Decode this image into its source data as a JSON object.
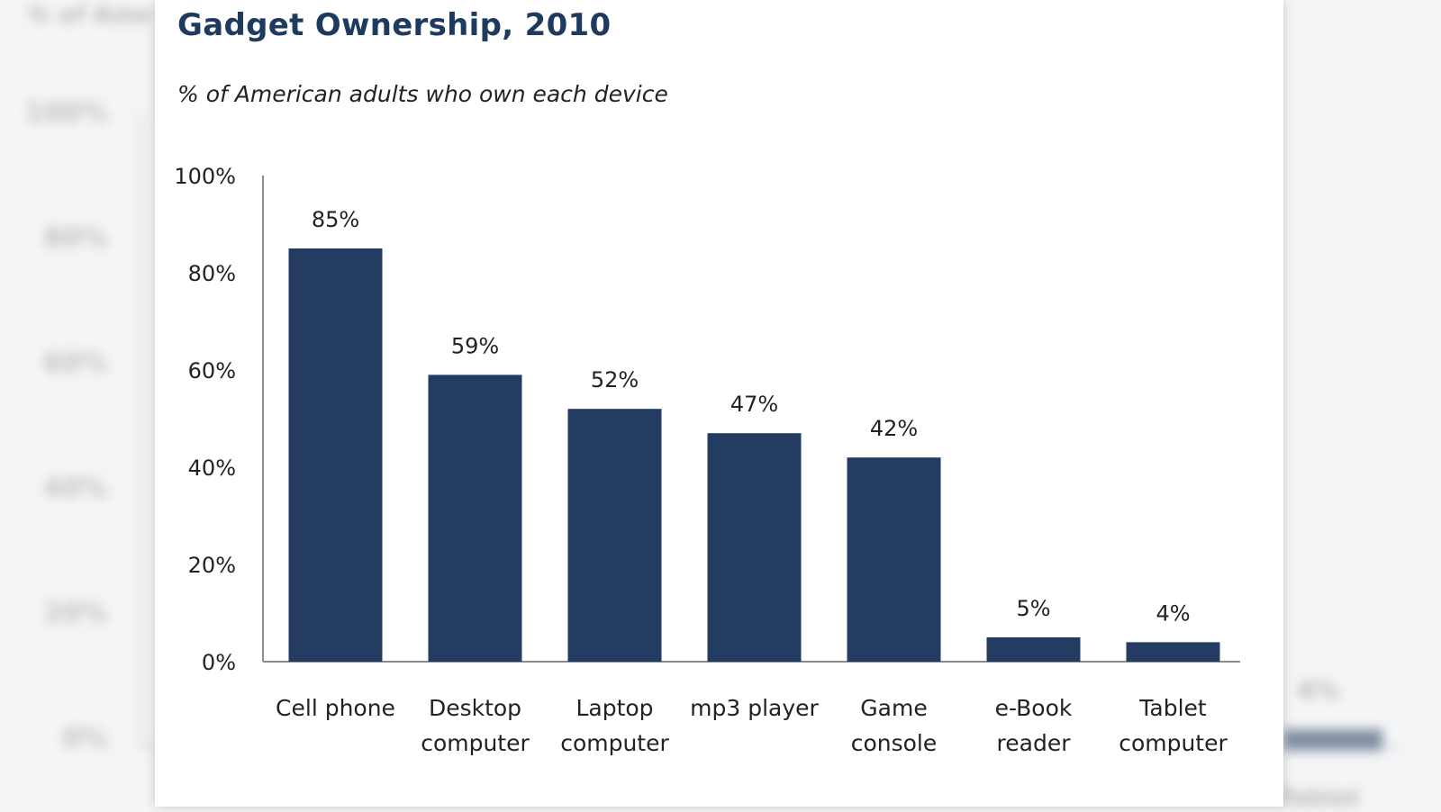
{
  "chart_data": {
    "type": "bar",
    "title": "Gadget Ownership, 2010",
    "subtitle": "% of American adults who own each device",
    "categories": [
      "Cell phone",
      "Desktop computer",
      "Laptop computer",
      "mp3 player",
      "Game console",
      "e-Book reader",
      "Tablet computer"
    ],
    "category_lines": [
      [
        "Cell phone"
      ],
      [
        "Desktop",
        "computer"
      ],
      [
        "Laptop",
        "computer"
      ],
      [
        "mp3 player"
      ],
      [
        "Game",
        "console"
      ],
      [
        "e-Book",
        "reader"
      ],
      [
        "Tablet",
        "computer"
      ]
    ],
    "values": [
      85,
      59,
      52,
      47,
      42,
      5,
      4
    ],
    "value_labels": [
      "85%",
      "59%",
      "52%",
      "47%",
      "42%",
      "5%",
      "4%"
    ],
    "ylim": [
      0,
      100
    ],
    "yticks": [
      0,
      20,
      40,
      60,
      80,
      100
    ],
    "ytick_labels": [
      "0%",
      "20%",
      "40%",
      "60%",
      "80%",
      "100%"
    ],
    "xlabel": "",
    "ylabel": "",
    "grid": false,
    "legend": "none",
    "bar_color": "#243c62"
  },
  "background": {
    "ticks": [
      "100%",
      "80%",
      "60%",
      "40%",
      "20%",
      "0%"
    ],
    "fragment_title": "% of Ame",
    "fragment_value": "4%",
    "fragment_bottom": "Tablet"
  }
}
